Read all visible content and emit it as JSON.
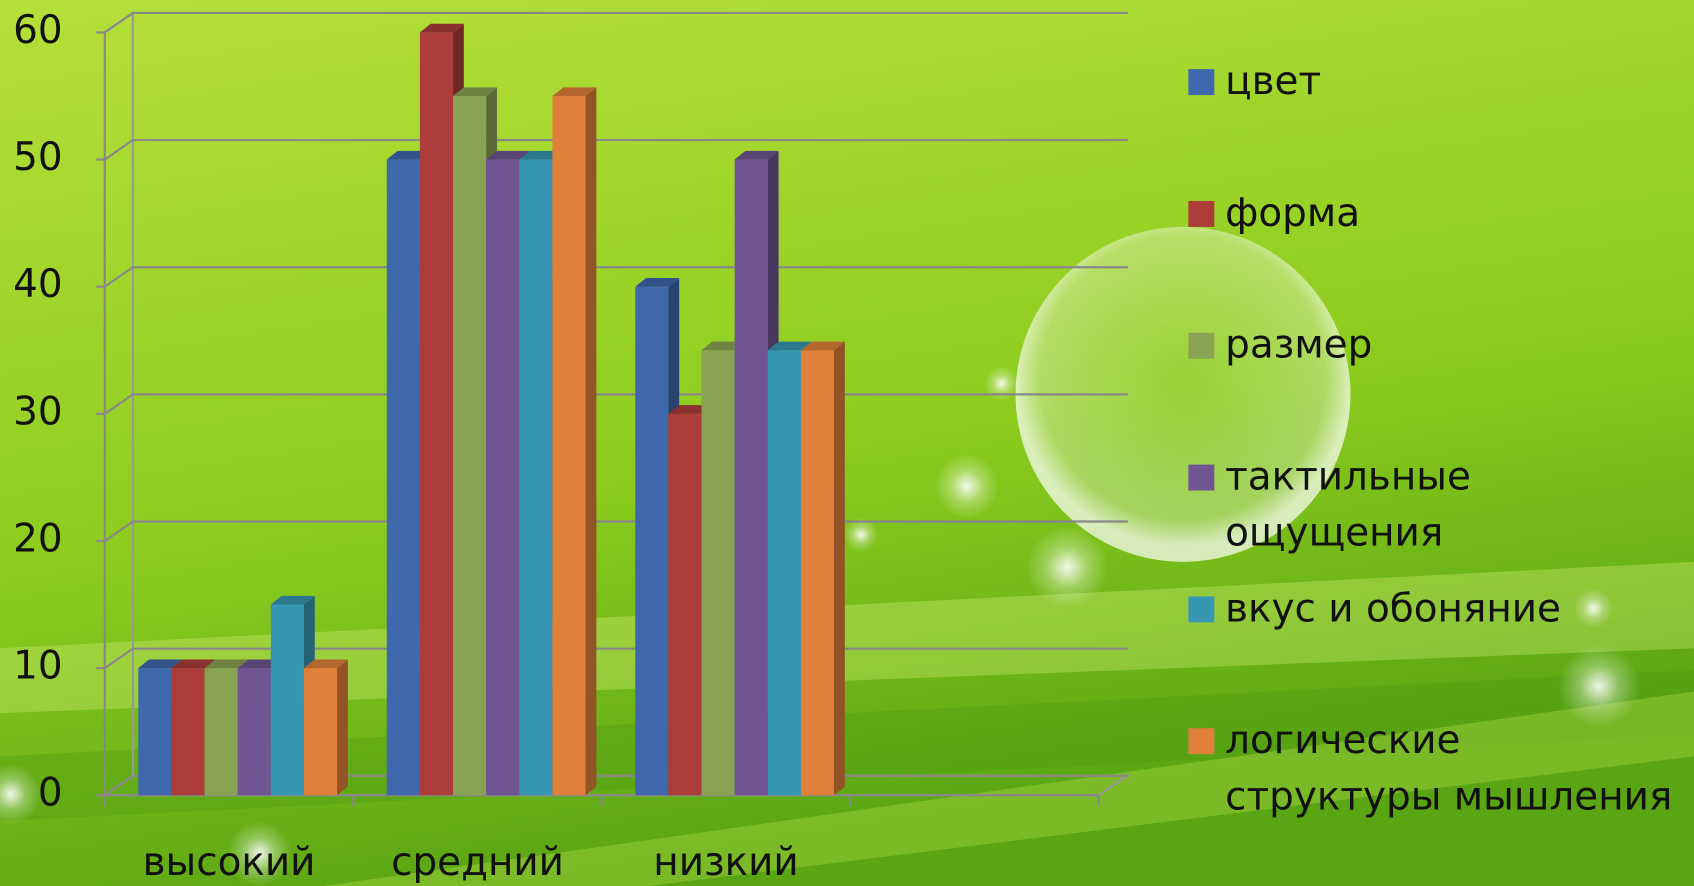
{
  "chart_data": {
    "type": "bar3d",
    "categories": [
      "высокий",
      "средний",
      "низкий"
    ],
    "series": [
      {
        "name": "цвет",
        "color": "#3f68ad",
        "values": [
          10,
          50,
          40
        ]
      },
      {
        "name": "форма",
        "color": "#ad3d3b",
        "values": [
          10,
          60,
          30
        ]
      },
      {
        "name": "размер",
        "color": "#8aa253",
        "values": [
          10,
          55,
          35
        ]
      },
      {
        "name": "тактильные ощущения",
        "color": "#705592",
        "values": [
          10,
          50,
          50
        ]
      },
      {
        "name": "вкус и обоняние",
        "color": "#3797b3",
        "values": [
          15,
          50,
          35
        ]
      },
      {
        "name": "логические структуры мышления",
        "color": "#e0803a",
        "values": [
          10,
          55,
          35
        ]
      }
    ],
    "ylim": [
      0,
      60
    ],
    "yticks": [
      0,
      10,
      20,
      30,
      40,
      50,
      60
    ],
    "grid": true,
    "legend": "right"
  }
}
